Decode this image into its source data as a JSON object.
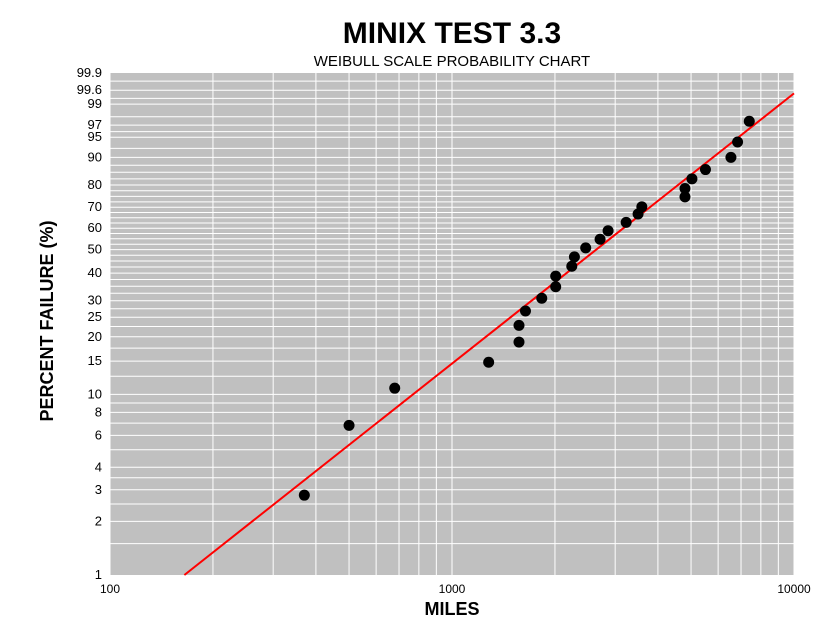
{
  "chart_data": {
    "type": "scatter",
    "title": "MINIX TEST 3.3",
    "subtitle": "WEIBULL SCALE PROBABILITY CHART",
    "xlabel": "MILES",
    "ylabel": "PERCENT FAILURE (%)",
    "x_scale": "log",
    "y_scale": "weibull",
    "xlim": [
      100,
      10000
    ],
    "ylim": [
      1,
      99.9
    ],
    "x_ticks": [
      "100",
      "1000",
      "10000"
    ],
    "y_ticks": [
      "1",
      "2",
      "3",
      "4",
      "6",
      "8",
      "10",
      "15",
      "20",
      "25",
      "30",
      "40",
      "50",
      "60",
      "70",
      "80",
      "90",
      "95",
      "97",
      "99",
      "99.6",
      "99.9"
    ],
    "grid": true,
    "background_color": "#c0c0c0",
    "grid_color": "#ffffff",
    "marker_color": "#000000",
    "fit_line_color": "#ff0000",
    "series": [
      {
        "values": [
          {
            "x": 370,
            "y": 2.8
          },
          {
            "x": 500,
            "y": 6.8
          },
          {
            "x": 680,
            "y": 10.8
          },
          {
            "x": 1280,
            "y": 14.8
          },
          {
            "x": 1570,
            "y": 18.8
          },
          {
            "x": 1570,
            "y": 22.8
          },
          {
            "x": 1640,
            "y": 26.8
          },
          {
            "x": 1830,
            "y": 30.8
          },
          {
            "x": 2010,
            "y": 34.8
          },
          {
            "x": 2010,
            "y": 38.8
          },
          {
            "x": 2240,
            "y": 42.8
          },
          {
            "x": 2280,
            "y": 46.8
          },
          {
            "x": 2460,
            "y": 50.8
          },
          {
            "x": 2710,
            "y": 54.8
          },
          {
            "x": 2860,
            "y": 58.8
          },
          {
            "x": 3230,
            "y": 62.8
          },
          {
            "x": 3500,
            "y": 66.8
          },
          {
            "x": 3590,
            "y": 70.2
          },
          {
            "x": 4800,
            "y": 74.8
          },
          {
            "x": 4800,
            "y": 78.5
          },
          {
            "x": 5030,
            "y": 82.5
          },
          {
            "x": 5510,
            "y": 86
          },
          {
            "x": 6540,
            "y": 90
          },
          {
            "x": 6840,
            "y": 94
          },
          {
            "x": 7400,
            "y": 97.5
          }
        ]
      }
    ],
    "fit_line": [
      {
        "x": 165,
        "y": 1
      },
      {
        "x": 10000,
        "y": 99.5
      }
    ]
  }
}
